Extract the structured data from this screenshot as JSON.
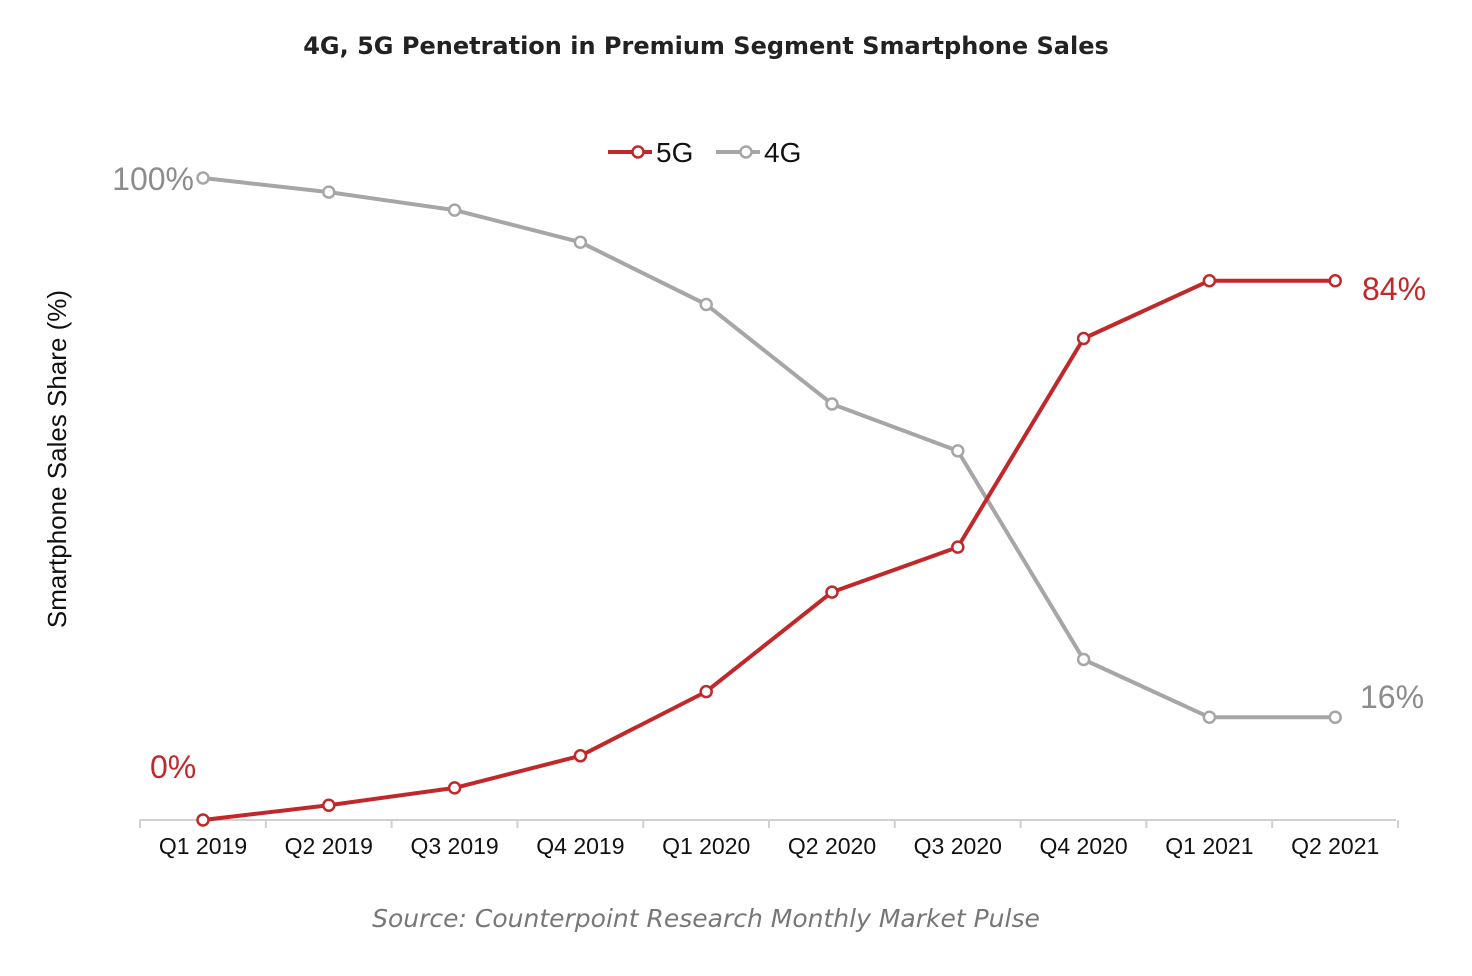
{
  "title": "4G, 5G Penetration in Premium Segment Smartphone Sales",
  "source": "Source: Counterpoint Research Monthly Market Pulse",
  "chart_data": {
    "type": "line",
    "title": "4G, 5G Penetration in Premium Segment Smartphone Sales",
    "xlabel": "",
    "ylabel": "Smartphone Sales Share (%)",
    "ylim": [
      0,
      100
    ],
    "grid": false,
    "legend_position": "top-center",
    "categories": [
      "Q1 2019",
      "Q2 2019",
      "Q3 2019",
      "Q4 2019",
      "Q1 2020",
      "Q2 2020",
      "Q3 2020",
      "Q4 2020",
      "Q1 2021",
      "Q2 2021"
    ],
    "series": [
      {
        "name": "5G",
        "color": "#c0282a",
        "values": [
          0,
          2.3,
          5,
          10,
          20,
          35.5,
          42.5,
          75,
          84,
          84
        ],
        "start_label": "0%",
        "end_label": "84%"
      },
      {
        "name": "4G",
        "color": "#a6a6a6",
        "values": [
          100,
          97.8,
          95,
          90,
          80.3,
          64.8,
          57.5,
          25,
          16,
          16
        ],
        "start_label": "100%",
        "end_label": "16%"
      }
    ]
  }
}
